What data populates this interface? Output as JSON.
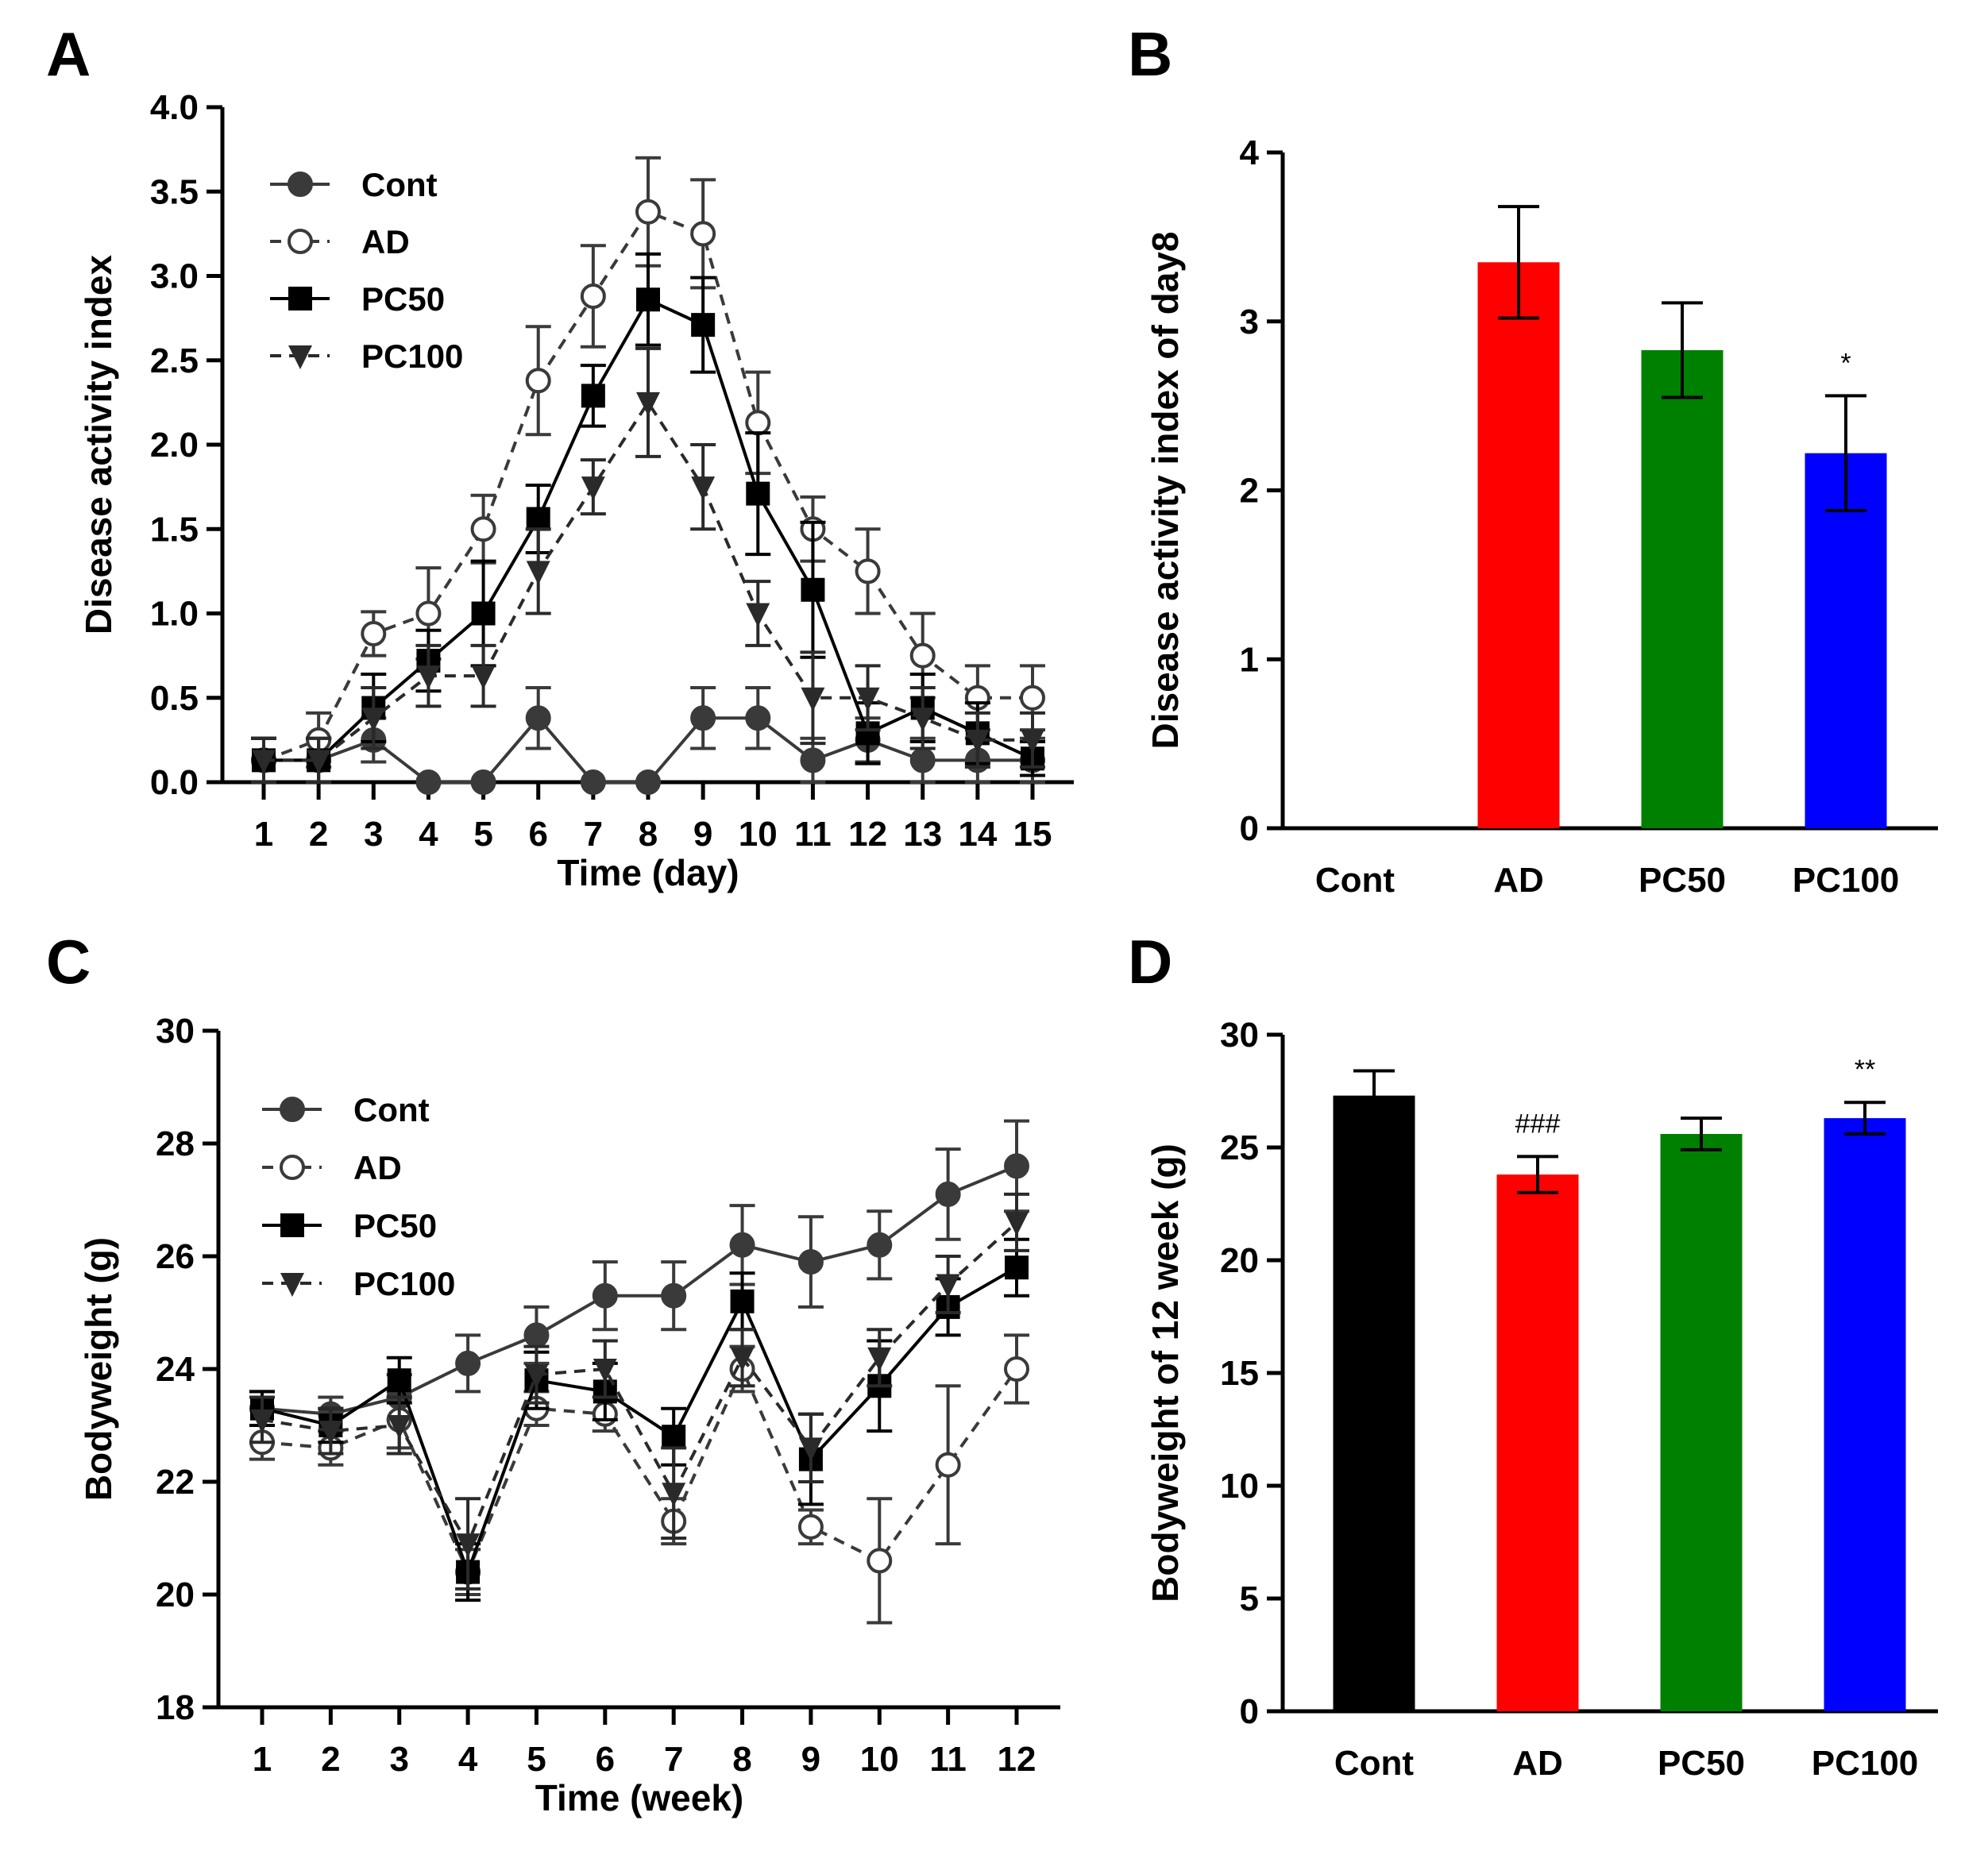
{
  "chart_data": [
    {
      "panel": "A",
      "type": "line",
      "xlabel": "Time (day)",
      "ylabel": "Disease activity index",
      "x": [
        1,
        2,
        3,
        4,
        5,
        6,
        7,
        8,
        9,
        10,
        11,
        12,
        13,
        14,
        15
      ],
      "xticks": [
        "1",
        "2",
        "3",
        "4",
        "5",
        "6",
        "7",
        "8",
        "9",
        "10",
        "11",
        "12",
        "13",
        "14",
        "15"
      ],
      "ylim": [
        0,
        4
      ],
      "yticks": [
        "0.0",
        "0.5",
        "1.0",
        "1.5",
        "2.0",
        "2.5",
        "3.0",
        "3.5",
        "4.0"
      ],
      "legend_position": "top-left",
      "series": [
        {
          "name": "Cont",
          "marker": "filled-circle",
          "line": "solid",
          "color": "#3a3a3a",
          "values": [
            0.13,
            0.13,
            0.25,
            0,
            0,
            0.38,
            0,
            0,
            0.38,
            0.38,
            0.13,
            0.25,
            0.13,
            0.13,
            0.13
          ],
          "errors": [
            0.13,
            0.13,
            0.13,
            0,
            0,
            0.18,
            0,
            0,
            0.18,
            0.18,
            0.13,
            0.13,
            0.13,
            0.13,
            0.13
          ]
        },
        {
          "name": "AD",
          "marker": "open-circle",
          "line": "dashed",
          "color": "#3a3a3a",
          "values": [
            0.13,
            0.25,
            0.88,
            1.0,
            1.5,
            2.38,
            2.88,
            3.38,
            3.25,
            2.13,
            1.5,
            1.25,
            0.75,
            0.5,
            0.5
          ],
          "errors": [
            0.13,
            0.16,
            0.13,
            0.27,
            0.2,
            0.32,
            0.3,
            0.32,
            0.32,
            0.3,
            0.19,
            0.25,
            0.25,
            0.19,
            0.19
          ]
        },
        {
          "name": "PC50",
          "marker": "filled-square",
          "line": "solid",
          "color": "#000000",
          "values": [
            0.13,
            0.13,
            0.44,
            0.72,
            1.0,
            1.56,
            2.29,
            2.86,
            2.71,
            1.71,
            1.14,
            0.29,
            0.44,
            0.29,
            0.14
          ],
          "errors": [
            0.13,
            0.13,
            0.2,
            0.18,
            0.31,
            0.2,
            0.18,
            0.27,
            0.28,
            0.36,
            0.4,
            0.18,
            0.2,
            0.18,
            0.1
          ]
        },
        {
          "name": "PC100",
          "marker": "filled-down-triangle",
          "line": "dashed",
          "color": "#2a2a2a",
          "values": [
            0.13,
            0.13,
            0.38,
            0.63,
            0.63,
            1.25,
            1.75,
            2.25,
            1.75,
            1.0,
            0.5,
            0.5,
            0.38,
            0.25,
            0.25
          ],
          "errors": [
            0.13,
            0.13,
            0.18,
            0.18,
            0.18,
            0.25,
            0.16,
            0.32,
            0.25,
            0.19,
            0.27,
            0.19,
            0.18,
            0.16,
            0.16
          ]
        }
      ]
    },
    {
      "panel": "B",
      "type": "bar",
      "ylabel": "Disease activity index of day8",
      "categories": [
        "Cont",
        "AD",
        "PC50",
        "PC100"
      ],
      "values": [
        0,
        3.35,
        2.83,
        2.22
      ],
      "errors": [
        0,
        0.33,
        0.28,
        0.34
      ],
      "colors": [
        "#000000",
        "#ff0000",
        "#008000",
        "#0000ff"
      ],
      "annotations": [
        "",
        "",
        "",
        "*"
      ],
      "ylim": [
        0,
        4
      ],
      "yticks": [
        "0",
        "1",
        "2",
        "3",
        "4"
      ]
    },
    {
      "panel": "C",
      "type": "line",
      "xlabel": "Time (week)",
      "ylabel": "Bodyweight (g)",
      "x": [
        1,
        2,
        3,
        4,
        5,
        6,
        7,
        8,
        9,
        10,
        11,
        12
      ],
      "xticks": [
        "1",
        "2",
        "3",
        "4",
        "5",
        "6",
        "7",
        "8",
        "9",
        "10",
        "11",
        "12"
      ],
      "ylim": [
        18,
        30
      ],
      "yticks": [
        "18",
        "20",
        "22",
        "24",
        "26",
        "28",
        "30"
      ],
      "legend_position": "top-left",
      "series": [
        {
          "name": "Cont",
          "marker": "filled-circle",
          "line": "solid",
          "color": "#3a3a3a",
          "values": [
            23.3,
            23.2,
            23.5,
            24.1,
            24.6,
            25.3,
            25.3,
            26.2,
            25.9,
            26.2,
            27.1,
            27.6
          ],
          "errors": [
            0.3,
            0.3,
            0.4,
            0.5,
            0.5,
            0.6,
            0.6,
            0.7,
            0.8,
            0.6,
            0.8,
            0.8
          ]
        },
        {
          "name": "AD",
          "marker": "open-circle",
          "line": "dashed",
          "color": "#3a3a3a",
          "values": [
            22.7,
            22.6,
            23.1,
            20.4,
            23.3,
            23.2,
            21.3,
            24.0,
            21.2,
            20.6,
            22.3,
            24.0
          ],
          "errors": [
            0.3,
            0.3,
            0.5,
            0.4,
            0.3,
            0.3,
            0.4,
            0.4,
            0.3,
            1.1,
            1.4,
            0.6
          ]
        },
        {
          "name": "PC50",
          "marker": "filled-square",
          "line": "solid",
          "color": "#000000",
          "values": [
            23.3,
            23.0,
            23.8,
            20.4,
            23.8,
            23.6,
            22.8,
            25.2,
            22.4,
            23.7,
            25.1,
            25.8
          ],
          "errors": [
            0.3,
            0.3,
            0.4,
            0.5,
            0.5,
            0.5,
            0.5,
            0.5,
            0.8,
            0.8,
            0.5,
            0.5
          ]
        },
        {
          "name": "PC100",
          "marker": "filled-down-triangle",
          "line": "dashed",
          "color": "#2a2a2a",
          "values": [
            23.1,
            22.9,
            23.0,
            20.9,
            23.9,
            24.0,
            21.8,
            24.2,
            22.6,
            24.2,
            25.5,
            26.6
          ],
          "errors": [
            0.4,
            0.4,
            0.5,
            0.8,
            0.5,
            0.5,
            0.8,
            0.5,
            0.6,
            0.5,
            0.5,
            0.5
          ]
        }
      ]
    },
    {
      "panel": "D",
      "type": "bar",
      "ylabel": "Bodyweight of 12 week (g)",
      "categories": [
        "Cont",
        "AD",
        "PC50",
        "PC100"
      ],
      "values": [
        27.3,
        23.8,
        25.6,
        26.3
      ],
      "errors": [
        1.1,
        0.8,
        0.7,
        0.7
      ],
      "colors": [
        "#000000",
        "#ff0000",
        "#008000",
        "#0000ff"
      ],
      "annotations": [
        "",
        "###",
        "",
        "**"
      ],
      "ylim": [
        0,
        30
      ],
      "yticks": [
        "0",
        "5",
        "10",
        "15",
        "20",
        "25",
        "30"
      ]
    }
  ]
}
